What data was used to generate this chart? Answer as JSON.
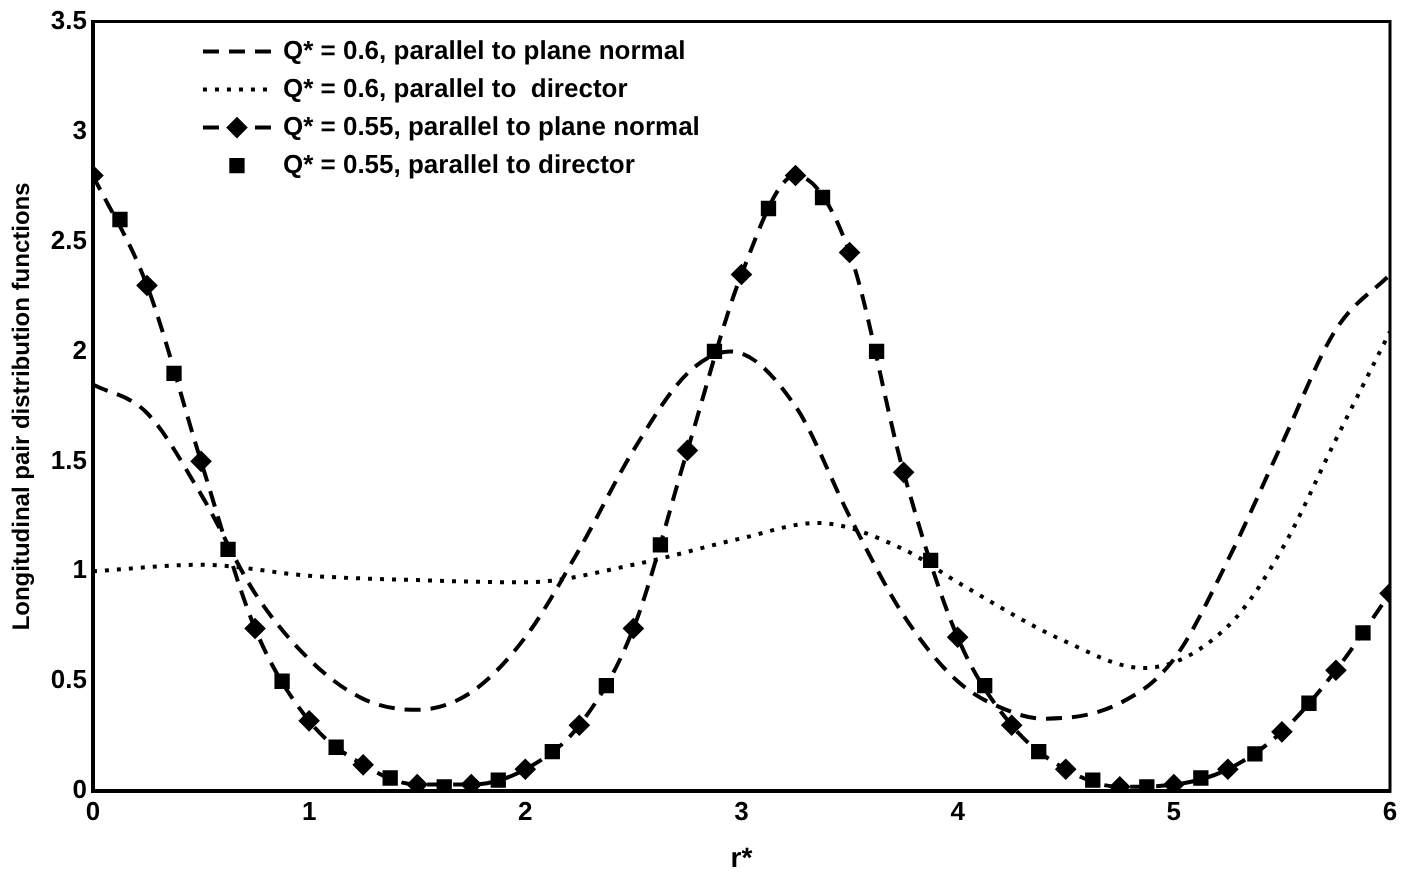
{
  "chart_data": {
    "type": "line",
    "xlabel": "r*",
    "ylabel": "Longitudinal pair distribution functions",
    "xlim": [
      0,
      6
    ],
    "xticks": [
      0,
      1,
      2,
      3,
      4,
      5,
      6
    ],
    "ylim": [
      0,
      3.5
    ],
    "yticks": [
      0,
      0.5,
      1,
      1.5,
      2,
      2.5,
      3,
      3.5
    ],
    "grid": false,
    "legend": "top left",
    "series": [
      {
        "name": "Q* = 0.6, parallel to plane normal",
        "color": "#000000",
        "line_style": "dashed",
        "marker": "none",
        "x": [
          0,
          0.25,
          0.5,
          0.75,
          1,
          1.25,
          1.5,
          1.75,
          2,
          2.25,
          2.5,
          2.75,
          2.95,
          3.25,
          3.5,
          3.75,
          4,
          4.25,
          4.4,
          4.75,
          5,
          5.25,
          5.5,
          5.75,
          6
        ],
        "values": [
          1.85,
          1.72,
          1.35,
          0.9,
          0.6,
          0.42,
          0.37,
          0.45,
          0.7,
          1.1,
          1.55,
          1.9,
          2.0,
          1.75,
          1.25,
          0.8,
          0.5,
          0.36,
          0.33,
          0.4,
          0.6,
          1.05,
          1.58,
          2.1,
          2.35
        ]
      },
      {
        "name": "Q* = 0.6, parallel to  director",
        "color": "#000000",
        "line_style": "dotted",
        "marker": "none",
        "x": [
          0,
          0.5,
          1,
          1.5,
          2,
          2.5,
          3,
          3.35,
          3.75,
          4,
          4.5,
          4.86,
          5.25,
          5.5,
          5.75,
          6
        ],
        "values": [
          1.0,
          1.03,
          0.98,
          0.96,
          0.95,
          1.03,
          1.15,
          1.22,
          1.1,
          0.95,
          0.68,
          0.56,
          0.75,
          1.1,
          1.6,
          2.09
        ]
      },
      {
        "name": "Q* = 0.55, parallel to plane normal",
        "color": "#000000",
        "line_style": "dashed",
        "marker": "diamond",
        "x": [
          0,
          0.25,
          0.5,
          0.75,
          1,
          1.25,
          1.5,
          1.75,
          2,
          2.25,
          2.5,
          2.75,
          3,
          3.25,
          3.5,
          3.75,
          4,
          4.25,
          4.5,
          4.75,
          5,
          5.25,
          5.5,
          5.75,
          6
        ],
        "values": [
          2.8,
          2.3,
          1.5,
          0.74,
          0.32,
          0.12,
          0.03,
          0.03,
          0.1,
          0.3,
          0.74,
          1.55,
          2.35,
          2.8,
          2.45,
          1.45,
          0.7,
          0.3,
          0.1,
          0.02,
          0.03,
          0.1,
          0.27,
          0.55,
          0.9
        ]
      },
      {
        "name": "Q* = 0.55, parallel to director",
        "color": "#000000",
        "type": "scatter",
        "marker": "square",
        "x": [
          0.125,
          0.375,
          0.625,
          0.875,
          1.125,
          1.375,
          1.625,
          1.875,
          2.125,
          2.375,
          2.625,
          2.875,
          3.125,
          3.375,
          3.625,
          3.875,
          4.125,
          4.375,
          4.625,
          4.875,
          5.125,
          5.375,
          5.625,
          5.875
        ],
        "values": [
          2.6,
          1.9,
          1.1,
          0.5,
          0.2,
          0.06,
          0.02,
          0.05,
          0.18,
          0.48,
          1.12,
          2.0,
          2.65,
          2.7,
          2.0,
          1.05,
          0.48,
          0.18,
          0.05,
          0.02,
          0.06,
          0.17,
          0.4,
          0.72
        ]
      }
    ]
  }
}
